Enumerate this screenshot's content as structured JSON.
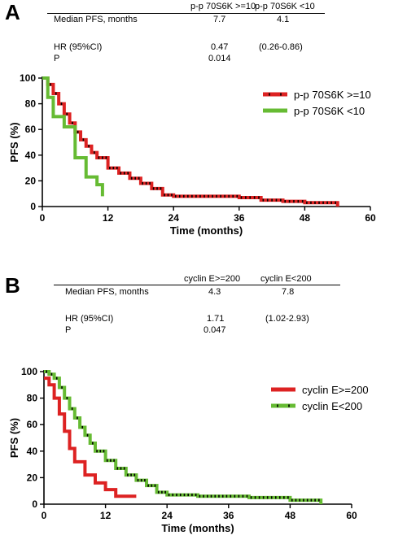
{
  "panels": {
    "a": {
      "letter": "A",
      "table": {
        "col1_header": "p-p 70S6K >=10",
        "col2_header": "p-p 70S6K <10",
        "rows": [
          {
            "label": "Median PFS, months",
            "v1": "7.7",
            "v2": "4.1"
          },
          {
            "label": "HR (95%CI)",
            "v1": "0.47",
            "v2": "(0.26-0.86)"
          },
          {
            "label": "P",
            "v1": "0.014",
            "v2": ""
          }
        ]
      }
    },
    "b": {
      "letter": "B",
      "table": {
        "col1_header": "cyclin E>=200",
        "col2_header": "cyclin E<200",
        "rows": [
          {
            "label": "Median PFS, months",
            "v1": "4.3",
            "v2": "7.8"
          },
          {
            "label": "HR (95%CI)",
            "v1": "1.71",
            "v2": "(1.02-2.93)"
          },
          {
            "label": "P",
            "v1": "0.047",
            "v2": ""
          }
        ]
      }
    }
  },
  "colors": {
    "red": "#dd2222",
    "green": "#66bb33",
    "axis": "#000000",
    "censor": "#000000"
  },
  "chart_data": [
    {
      "type": "line",
      "subtype": "kaplan-meier",
      "xlabel": "Time (months)",
      "ylabel": "PFS (%)",
      "xlim": [
        0,
        60
      ],
      "ylim": [
        0,
        100
      ],
      "xticks": [
        0,
        12,
        24,
        36,
        48,
        60
      ],
      "yticks": [
        0,
        20,
        40,
        60,
        80,
        100
      ],
      "grid": false,
      "legend_position": "top-right",
      "series": [
        {
          "name": "p-p 70S6K >=10",
          "color": "red",
          "censor_marks": true,
          "x": [
            0,
            1,
            2,
            3,
            4,
            5,
            6,
            7,
            8,
            9,
            10,
            12,
            14,
            16,
            18,
            20,
            22,
            24,
            30,
            36,
            40,
            44,
            48,
            54
          ],
          "y": [
            100,
            95,
            88,
            80,
            72,
            65,
            58,
            52,
            47,
            42,
            38,
            30,
            26,
            22,
            18,
            14,
            9,
            8,
            8,
            7,
            5,
            4,
            3,
            0
          ]
        },
        {
          "name": "p-p 70S6K <10",
          "color": "green",
          "censor_marks": false,
          "x": [
            0,
            1,
            2,
            4,
            6,
            8,
            10,
            11
          ],
          "y": [
            100,
            85,
            70,
            62,
            38,
            23,
            17,
            8
          ]
        }
      ]
    },
    {
      "type": "line",
      "subtype": "kaplan-meier",
      "xlabel": "Time (months)",
      "ylabel": "PFS (%)",
      "xlim": [
        0,
        60
      ],
      "ylim": [
        0,
        100
      ],
      "xticks": [
        0,
        12,
        24,
        36,
        48,
        60
      ],
      "yticks": [
        0,
        20,
        40,
        60,
        80,
        100
      ],
      "grid": false,
      "legend_position": "top-right",
      "series": [
        {
          "name": "cyclin E>=200",
          "color": "red",
          "censor_marks": false,
          "x": [
            0,
            1,
            2,
            3,
            4,
            5,
            6,
            8,
            10,
            12,
            14,
            18
          ],
          "y": [
            95,
            90,
            80,
            68,
            55,
            42,
            32,
            22,
            16,
            11,
            6,
            6
          ]
        },
        {
          "name": "cyclin E<200",
          "color": "green",
          "censor_marks": true,
          "x": [
            0,
            1,
            2,
            3,
            4,
            5,
            6,
            7,
            8,
            9,
            10,
            12,
            14,
            16,
            18,
            20,
            22,
            24,
            30,
            36,
            40,
            44,
            48,
            54
          ],
          "y": [
            100,
            98,
            95,
            88,
            80,
            72,
            65,
            58,
            52,
            46,
            40,
            33,
            27,
            22,
            18,
            14,
            9,
            7,
            6,
            6,
            5,
            5,
            3,
            0
          ]
        }
      ]
    }
  ]
}
